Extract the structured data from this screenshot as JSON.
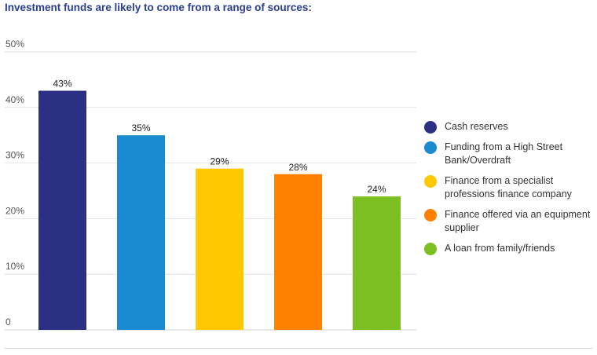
{
  "title": "Investment funds are likely to come from a range of sources:",
  "chart_data": {
    "type": "bar",
    "title": "Investment funds are likely to come from a range of sources:",
    "xlabel": "",
    "ylabel": "",
    "ylim": [
      0,
      50
    ],
    "yticks": [
      0,
      10,
      20,
      30,
      40,
      50
    ],
    "ytick_labels": [
      "0",
      "10%",
      "20%",
      "30%",
      "40%",
      "50%"
    ],
    "grid": true,
    "legend_position": "right",
    "categories": [
      "Cash reserves",
      "Funding from a High Street Bank/Overdraft",
      "Finance from a specialist professions finance company",
      "Finance offered via an equipment supplier",
      "A loan from family/friends"
    ],
    "values": [
      43,
      35,
      29,
      28,
      24
    ],
    "value_labels": [
      "43%",
      "35%",
      "29%",
      "28%",
      "24%"
    ],
    "colors": [
      "#2b3085",
      "#1a8ad1",
      "#ffc800",
      "#ff8100",
      "#7cbf23"
    ]
  }
}
